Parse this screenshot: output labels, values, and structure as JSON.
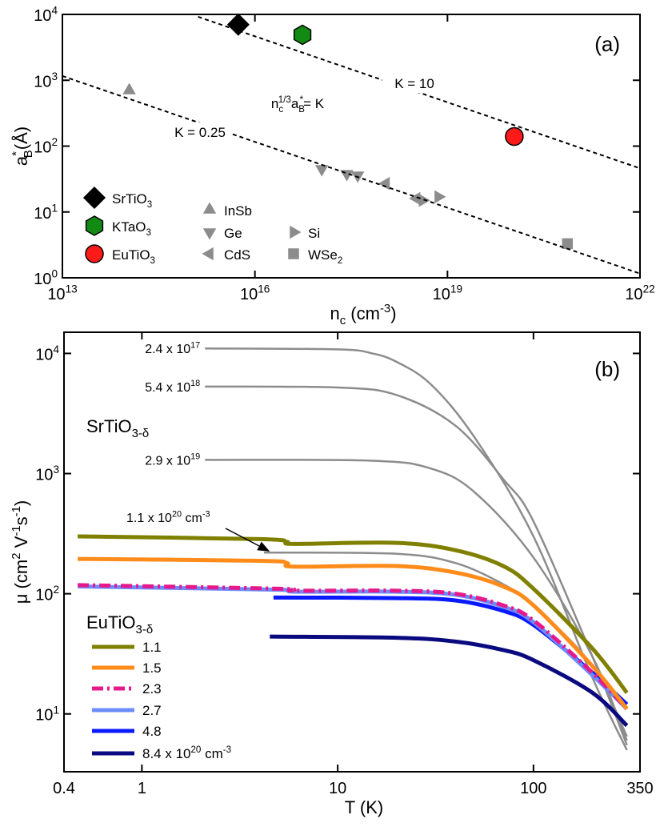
{
  "chart_data": [
    {
      "type": "scatter",
      "panel_label": "(a)",
      "x_label": "n_{c} (cm^{-3})",
      "y_label": "a^{*}_{B}(Å)",
      "log_x": true,
      "log_y": true,
      "xlim": [
        10000000000000.0,
        1e+22
      ],
      "ylim": [
        1,
        10000
      ],
      "xticks": [
        {
          "value": 10000000000000.0,
          "label": "10^{13}"
        },
        {
          "value": 1e+16,
          "label": "10^{16}"
        },
        {
          "value": 1e+19,
          "label": "10^{19}"
        },
        {
          "value": 1e+22,
          "label": "10^{22}"
        }
      ],
      "yticks": [
        {
          "value": 1,
          "label": "10^{0}"
        },
        {
          "value": 10,
          "label": "10^{1}"
        },
        {
          "value": 100,
          "label": "10^{2}"
        },
        {
          "value": 1000,
          "label": "10^{3}"
        },
        {
          "value": 10000,
          "label": "10^{4}"
        }
      ],
      "annotation": "n_{c}^{1/3}a_{B}^{*}= K",
      "series": [
        {
          "name": "SrTiO_{3}",
          "color": "#000000",
          "marker": "diamond",
          "marker_size": 13,
          "x": [
            5500000000000000.0
          ],
          "values": [
            7000
          ]
        },
        {
          "name": "KTaO_{3}",
          "color": "#138a13",
          "marker": "hexagon",
          "marker_size": 12,
          "x": [
            5.5e+16
          ],
          "values": [
            4900
          ]
        },
        {
          "name": "EuTiO_{3}",
          "color": "#ff1a1a",
          "marker": "circle",
          "marker_size": 11,
          "x": [
            1.1e+20
          ],
          "values": [
            140
          ]
        },
        {
          "name": "InSb",
          "color": "#8c8c8c",
          "marker": "triangle-up",
          "marker_size": 8,
          "x": [
            110000000000000.0
          ],
          "values": [
            700
          ]
        },
        {
          "name": "Ge",
          "color": "#8c8c8c",
          "marker": "triangle-down",
          "marker_size": 8,
          "x": [
            1.1e+17,
            2.7e+17,
            4e+17
          ],
          "values": [
            45,
            38,
            36
          ]
        },
        {
          "name": "CdS",
          "color": "#8c8c8c",
          "marker": "triangle-left",
          "marker_size": 8,
          "x": [
            1.1e+18,
            3.3e+18
          ],
          "values": [
            27,
            16
          ]
        },
        {
          "name": "Si",
          "color": "#8c8c8c",
          "marker": "triangle-right",
          "marker_size": 8,
          "x": [
            4.1e+18,
            7.2e+18
          ],
          "values": [
            15,
            17
          ]
        },
        {
          "name": "WSe_{2}",
          "color": "#8c8c8c",
          "marker": "square",
          "marker_size": 6,
          "x": [
            7.4e+20
          ],
          "values": [
            3.3
          ]
        },
        {
          "name": "K = 10",
          "color": "#000000",
          "dash": true,
          "x": [
            1300000000000000.0,
            1e+22
          ],
          "values": [
            9200,
            46
          ]
        },
        {
          "name": "K = 0.25",
          "color": "#000000",
          "dash": true,
          "x": [
            10000000000000.0,
            1e+22
          ],
          "values": [
            1160,
            1.16
          ]
        }
      ]
    },
    {
      "type": "line",
      "panel_label": "(b)",
      "x_label": "T (K)",
      "y_label": "μ (cm^{2} V^{-1}s^{-1})",
      "log_x": true,
      "log_y": true,
      "xlim": [
        0.4,
        350
      ],
      "ylim": [
        3.3,
        15000
      ],
      "xticks": [
        0.4,
        1,
        10,
        100,
        350
      ],
      "yticks": [
        {
          "value": 10,
          "label": "10^{1}"
        },
        {
          "value": 100,
          "label": "10^{2}"
        },
        {
          "value": 1000,
          "label": "10^{3}"
        },
        {
          "value": 10000,
          "label": "10^{4}"
        }
      ],
      "annotation": "SrTiO_{3-δ}",
      "legend_title": "EuTiO_{3-δ}",
      "series": [
        {
          "name": "2.4 x 10^{17}",
          "color": "#8c8c8c",
          "width": 2.5,
          "in_legend": false,
          "x": [
            2.1,
            10,
            15,
            20,
            30,
            50,
            100,
            200,
            300
          ],
          "values": [
            11000,
            10800,
            10000,
            8500,
            5500,
            2000,
            300,
            20,
            5
          ]
        },
        {
          "name": "5.4 x 10^{18}",
          "color": "#8c8c8c",
          "width": 2.5,
          "in_legend": false,
          "x": [
            2.1,
            10,
            20,
            40,
            70,
            100,
            200,
            300
          ],
          "values": [
            5300,
            5200,
            4500,
            2500,
            900,
            400,
            30,
            5.5
          ]
        },
        {
          "name": "2.9 x 10^{19}",
          "color": "#8c8c8c",
          "width": 2.5,
          "in_legend": false,
          "x": [
            2.1,
            15,
            30,
            50,
            100,
            200,
            300
          ],
          "values": [
            1300,
            1280,
            1100,
            700,
            200,
            30,
            6
          ]
        },
        {
          "name": "1.1 x 10^{20} cm^{-3}",
          "color": "#8c8c8c",
          "width": 2.5,
          "in_legend": false,
          "x": [
            4.2,
            20,
            40,
            70,
            100,
            200,
            300
          ],
          "values": [
            220,
            215,
            180,
            120,
            80,
            25,
            6.5
          ]
        },
        {
          "name": "1.1",
          "color": "#808000",
          "width": 5,
          "in_legend": true,
          "x": [
            0.47,
            4,
            5.5,
            6,
            20,
            40,
            70,
            100,
            200,
            300
          ],
          "values": [
            300,
            285,
            270,
            260,
            265,
            230,
            170,
            110,
            35,
            15
          ]
        },
        {
          "name": "1.5",
          "color": "#ff8c1a",
          "width": 5,
          "in_legend": true,
          "x": [
            0.47,
            4,
            5.5,
            6,
            20,
            40,
            70,
            100,
            200,
            300
          ],
          "values": [
            195,
            188,
            180,
            168,
            170,
            150,
            115,
            80,
            25,
            11
          ]
        },
        {
          "name": "2.3",
          "color": "#e6198c",
          "width": 5,
          "dash": true,
          "in_legend": true,
          "x": [
            0.47,
            5,
            6,
            20,
            40,
            70,
            100,
            200,
            300
          ],
          "values": [
            118,
            110,
            106,
            106,
            100,
            80,
            60,
            22,
            11
          ]
        },
        {
          "name": "2.7",
          "color": "#6b8cff",
          "width": 5,
          "in_legend": true,
          "x": [
            0.47,
            5,
            6,
            20,
            40,
            70,
            100,
            200,
            300
          ],
          "values": [
            115,
            108,
            104,
            104,
            98,
            78,
            58,
            21,
            11
          ]
        },
        {
          "name": "4.8",
          "color": "#0a1aff",
          "width": 5,
          "in_legend": true,
          "x": [
            4.7,
            20,
            40,
            70,
            100,
            200,
            300
          ],
          "values": [
            93,
            92,
            88,
            72,
            55,
            22,
            12
          ]
        },
        {
          "name": "8.4 x 10^{20} cm^{-3}",
          "color": "#0a0a80",
          "width": 5,
          "in_legend": true,
          "x": [
            4.5,
            20,
            40,
            70,
            100,
            200,
            300
          ],
          "values": [
            44,
            43,
            40,
            34,
            28,
            15,
            8
          ]
        }
      ]
    }
  ]
}
